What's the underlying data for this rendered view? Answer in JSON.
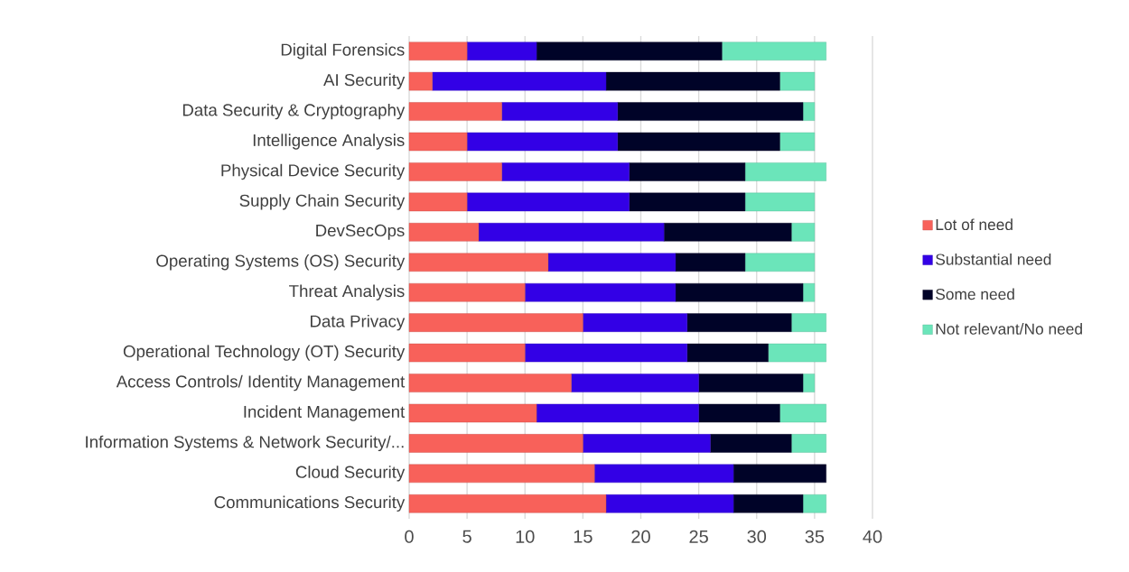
{
  "chart_data": {
    "type": "bar",
    "orientation": "horizontal",
    "stacked": true,
    "categories": [
      "Digital Forensics",
      "AI Security",
      "Data Security & Cryptography",
      "Intelligence Analysis",
      "Physical Device Security",
      "Supply Chain Security",
      "DevSecOps",
      "Operating Systems (OS) Security",
      "Threat Analysis",
      "Data Privacy",
      "Operational Technology (OT) Security",
      "Access Controls/ Identity Management",
      "Incident Management",
      "Information Systems & Network Security/...",
      "Cloud Security",
      "Communications Security"
    ],
    "series": [
      {
        "name": "Lot of need",
        "color": "#f8615a",
        "values": [
          5,
          2,
          8,
          5,
          8,
          5,
          6,
          12,
          10,
          15,
          10,
          14,
          11,
          15,
          16,
          17
        ]
      },
      {
        "name": "Substantial need",
        "color": "#3300e6",
        "values": [
          6,
          15,
          10,
          13,
          11,
          14,
          16,
          11,
          13,
          9,
          14,
          11,
          14,
          11,
          12,
          11
        ]
      },
      {
        "name": "Some need",
        "color": "#000328",
        "values": [
          16,
          15,
          16,
          14,
          10,
          10,
          11,
          6,
          11,
          9,
          7,
          9,
          7,
          7,
          8,
          6
        ]
      },
      {
        "name": "Not relevant/No need",
        "color": "#6be5ba",
        "values": [
          9,
          3,
          1,
          3,
          7,
          6,
          2,
          6,
          1,
          3,
          5,
          1,
          4,
          3,
          0,
          2
        ]
      }
    ],
    "xlim": [
      0,
      40
    ],
    "xticks": [
      0,
      5,
      10,
      15,
      20,
      25,
      30,
      35,
      40
    ],
    "grid": "x",
    "legend": "right"
  }
}
